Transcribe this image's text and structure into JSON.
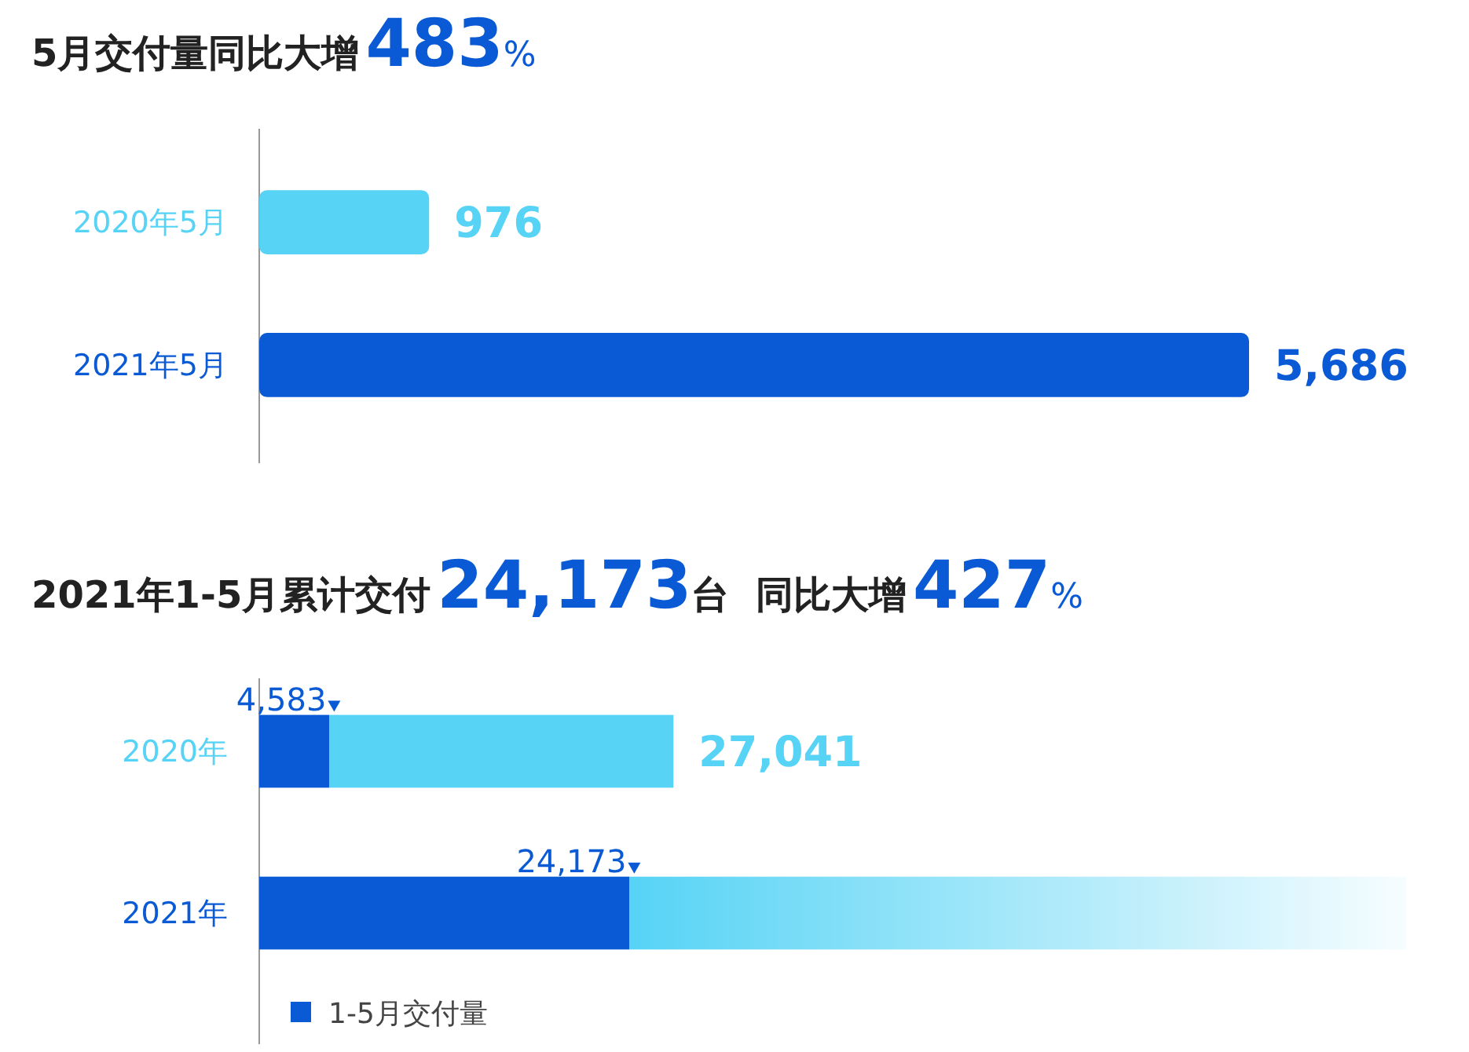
{
  "chart_data": [
    {
      "type": "bar",
      "orientation": "horizontal",
      "title": "5月交付量同比大增483%",
      "categories": [
        "2020年5月",
        "2021年5月"
      ],
      "values": [
        976,
        5686
      ],
      "colors": [
        "#56d3f5",
        "#0a5ad6"
      ],
      "value_labels": [
        "976",
        "5,686"
      ]
    },
    {
      "type": "bar",
      "orientation": "horizontal",
      "stacked": true,
      "title": "2021年1-5月累计交付24,173台  同比大增427%",
      "categories": [
        "2020年",
        "2021年"
      ],
      "series": [
        {
          "name": "1-5月交付量",
          "color": "#0a5ad6",
          "values": [
            4583,
            24173
          ],
          "value_labels": [
            "4,583",
            "24,173"
          ]
        },
        {
          "color": "#56d3f5",
          "values": [
            22458,
            50700
          ]
        }
      ],
      "totals": [
        "27,041",
        null
      ],
      "legend": "bottom left"
    }
  ]
}
